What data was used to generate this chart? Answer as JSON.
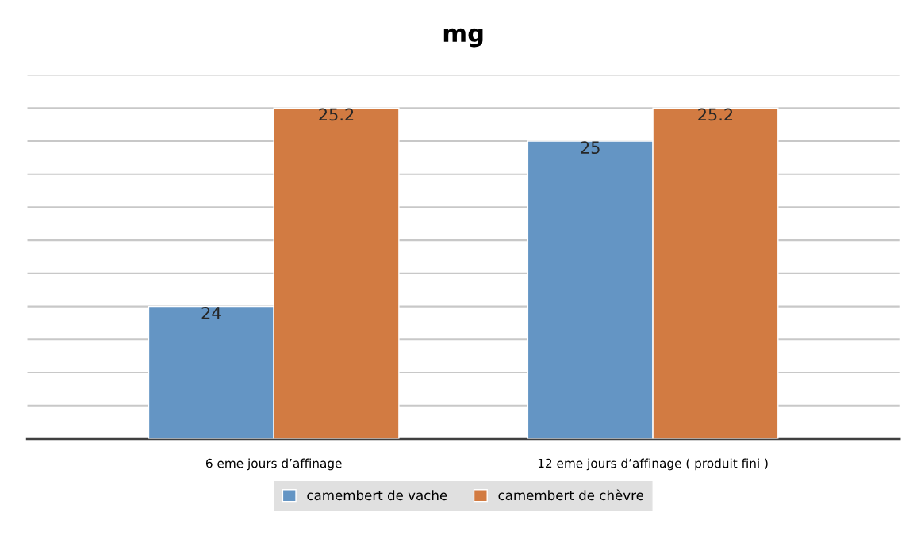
{
  "chart_data": {
    "type": "bar",
    "title": "mg",
    "categories": [
      "6 eme jours d’affinage",
      "12 eme jours d’affinage ( produit fini )"
    ],
    "series": [
      {
        "name": "camembert de vache",
        "color": "#6495c4",
        "values": [
          24,
          25
        ]
      },
      {
        "name": "camembert de chèvre",
        "color": "#d27b42",
        "values": [
          25.2,
          25.2
        ]
      }
    ],
    "ylim": [
      23.2,
      25.4
    ],
    "yticks": [
      {
        "value": 23.2,
        "label": null
      },
      {
        "value": 23.4,
        "label": null
      },
      {
        "value": 23.6,
        "label": null
      },
      {
        "value": 23.8,
        "label": null
      },
      {
        "value": 24.0,
        "label": null
      },
      {
        "value": 24.2,
        "label": null
      },
      {
        "value": 24.4,
        "label": null
      },
      {
        "value": 24.6,
        "label": null
      },
      {
        "value": 24.8,
        "label": null
      },
      {
        "value": 25.0,
        "label": null
      },
      {
        "value": 25.2,
        "label": null
      },
      {
        "value": 25.4,
        "label": null
      }
    ],
    "tick_labels": "x",
    "grid": "y",
    "legend": "bottom",
    "data_labels": true
  }
}
